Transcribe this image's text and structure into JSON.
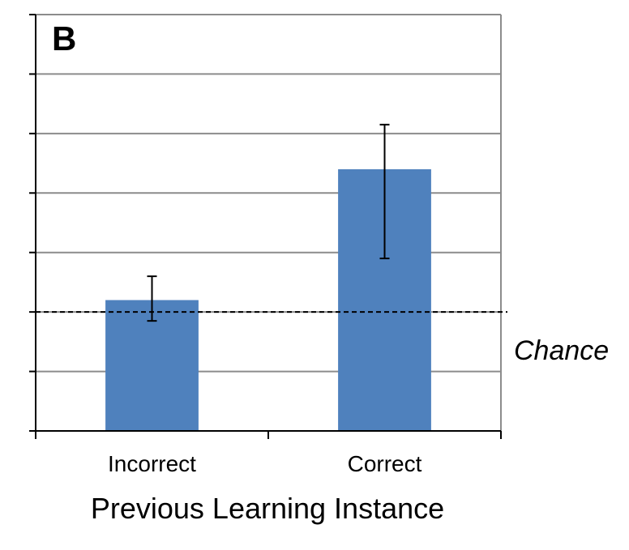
{
  "panel_label": "B",
  "chart_data": {
    "type": "bar",
    "categories": [
      "Incorrect",
      "Correct"
    ],
    "values": [
      0.52,
      0.74
    ],
    "error_bars": [
      {
        "low": 0.485,
        "high": 0.56
      },
      {
        "low": 0.59,
        "high": 0.815
      }
    ],
    "xlabel": "Previous Learning Instance",
    "ylabel": "",
    "ylim": [
      0.3,
      1.0
    ],
    "y_ticks": [
      0.3,
      0.35,
      0.4,
      0.45,
      0.5,
      0.55,
      0.6,
      0.65,
      0.7,
      0.75,
      0.8,
      0.85,
      0.9,
      0.95,
      1.0
    ],
    "y_tick_labels_shown": false,
    "grid": true,
    "reference_line": {
      "value": 0.5,
      "label": "Chance",
      "style": "dashed"
    },
    "bar_color": "#4f81bd",
    "grid_color": "#8c8c8c",
    "axis_color": "#000000"
  }
}
